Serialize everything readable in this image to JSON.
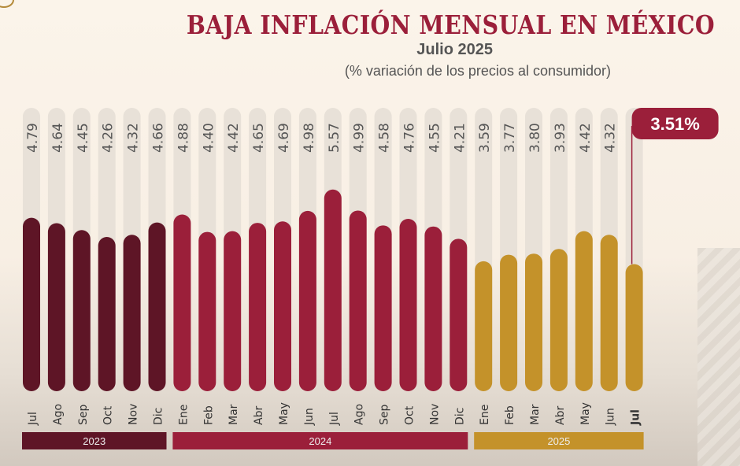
{
  "title": "BAJA INFLACIÓN MENSUAL EN MÉXICO",
  "subtitle": "Julio 2025",
  "note": "(% variación de los precios al consumidor)",
  "colors": {
    "2023": "#5e1526",
    "2024": "#9b1f3a",
    "2025": "#c4922a",
    "track": "#e8e1d8"
  },
  "chart_data": {
    "type": "bar",
    "title": "BAJA INFLACIÓN MENSUAL EN MÉXICO",
    "categories": [
      "Jul",
      "Ago",
      "Sep",
      "Oct",
      "Nov",
      "Dic",
      "Ene",
      "Feb",
      "Mar",
      "Abr",
      "May",
      "Jun",
      "Jul",
      "Ago",
      "Sep",
      "Oct",
      "Nov",
      "Dic",
      "Ene",
      "Feb",
      "Mar",
      "Abr",
      "May",
      "Jun",
      "Jul"
    ],
    "years": [
      "2023",
      "2023",
      "2023",
      "2023",
      "2023",
      "2023",
      "2024",
      "2024",
      "2024",
      "2024",
      "2024",
      "2024",
      "2024",
      "2024",
      "2024",
      "2024",
      "2024",
      "2024",
      "2025",
      "2025",
      "2025",
      "2025",
      "2025",
      "2025",
      "2025"
    ],
    "values": [
      4.79,
      4.64,
      4.45,
      4.26,
      4.32,
      4.66,
      4.88,
      4.4,
      4.42,
      4.65,
      4.69,
      4.98,
      5.57,
      4.99,
      4.58,
      4.76,
      4.55,
      4.21,
      3.59,
      3.77,
      3.8,
      3.93,
      4.42,
      4.32,
      3.51
    ],
    "labels": [
      "4.79",
      "4.64",
      "4.45",
      "4.26",
      "4.32",
      "4.66",
      "4.88",
      "4.40",
      "4.42",
      "4.65",
      "4.69",
      "4.98",
      "5.57",
      "4.99",
      "4.58",
      "4.76",
      "4.55",
      "4.21",
      "3.59",
      "3.77",
      "3.80",
      "3.93",
      "4.42",
      "4.32"
    ],
    "highlight_label": "3.51%",
    "year_groups": [
      {
        "label": "2023",
        "from": 0,
        "to": 5
      },
      {
        "label": "2024",
        "from": 6,
        "to": 17
      },
      {
        "label": "2025",
        "from": 18,
        "to": 24
      }
    ],
    "ylim": [
      0,
      7.8
    ],
    "grid": false
  }
}
